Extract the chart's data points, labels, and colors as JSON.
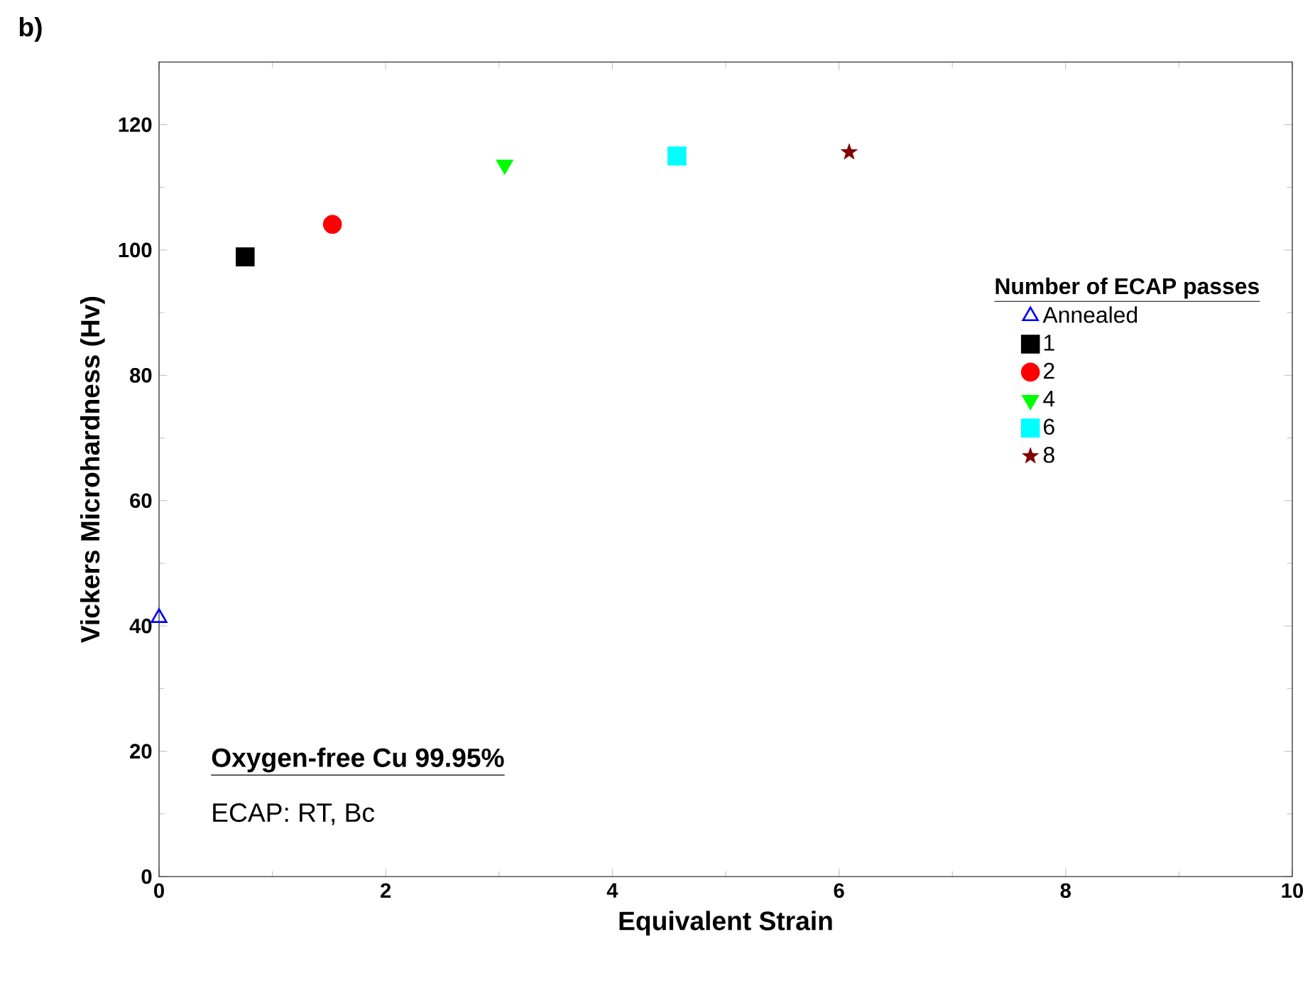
{
  "chart_data": {
    "type": "scatter",
    "xlabel": "Equivalent Strain",
    "ylabel": "Vickers Microhardness (Hv)",
    "legend_title": "Number of ECAP passes",
    "legend": "right",
    "xlim": [
      0,
      10
    ],
    "ylim": [
      0,
      130
    ],
    "xticks": [
      0,
      2,
      4,
      6,
      8,
      10
    ],
    "yticks": [
      0,
      20,
      40,
      60,
      80,
      100,
      120
    ],
    "annotations": [
      "b)",
      "Oxygen-free Cu 99.95%",
      "ECAP: RT, Bc"
    ],
    "series": [
      {
        "name": "Annealed",
        "color": "#0000ff",
        "marker": "triangle open",
        "x": [
          0
        ],
        "values": [
          41.3
        ]
      },
      {
        "name": "1",
        "color": "#000000",
        "marker": "square",
        "x": [
          0.76
        ],
        "values": [
          98.9
        ]
      },
      {
        "name": "2",
        "color": "#ff0000",
        "marker": "circle",
        "x": [
          1.53
        ],
        "values": [
          104.1
        ]
      },
      {
        "name": "4",
        "color": "#00ff00",
        "marker": "triangle down",
        "x": [
          3.05
        ],
        "values": [
          113.6
        ]
      },
      {
        "name": "6",
        "color": "#00ffff",
        "marker": "square",
        "x": [
          4.57
        ],
        "values": [
          115
        ]
      },
      {
        "name": "8",
        "color": "#800000",
        "marker": "star",
        "x": [
          6.09
        ],
        "values": [
          115.6
        ]
      }
    ]
  }
}
